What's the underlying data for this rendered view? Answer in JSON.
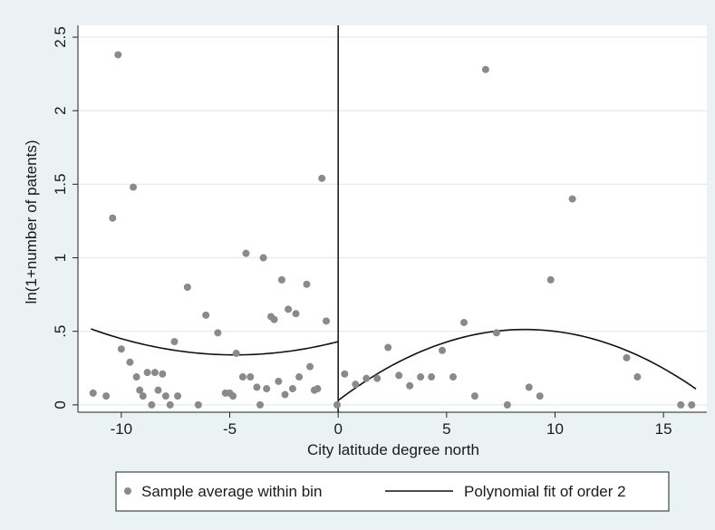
{
  "chart_data": {
    "type": "scatter",
    "title": "",
    "xlabel": "City latitude degree north",
    "ylabel": "ln(1+number of patents)",
    "xlim": [
      -12,
      17
    ],
    "ylim": [
      -0.05,
      2.58
    ],
    "x_ticks": [
      -10,
      -5,
      0,
      5,
      10,
      15
    ],
    "x_tick_labels": [
      "-10",
      "-5",
      "0",
      "5",
      "10",
      "15"
    ],
    "y_ticks": [
      0,
      0.5,
      1,
      1.5,
      2,
      2.5
    ],
    "y_tick_labels": [
      "0",
      ".5",
      "1",
      "1.5",
      "2",
      "2.5"
    ],
    "grid": "horizontal",
    "cutoff_x": 0,
    "legend_position": "bottom",
    "series": [
      {
        "name": "Sample average within bin",
        "type": "scatter",
        "color": "#8a8a8a",
        "points": [
          [
            -11.3,
            0.08
          ],
          [
            -10.7,
            0.06
          ],
          [
            -10.4,
            1.27
          ],
          [
            -10.15,
            2.38
          ],
          [
            -10.0,
            0.38
          ],
          [
            -9.6,
            0.29
          ],
          [
            -9.45,
            1.48
          ],
          [
            -9.3,
            0.19
          ],
          [
            -9.15,
            0.1
          ],
          [
            -9.0,
            0.06
          ],
          [
            -8.8,
            0.22
          ],
          [
            -8.6,
            0.0
          ],
          [
            -8.45,
            0.22
          ],
          [
            -8.3,
            0.1
          ],
          [
            -8.1,
            0.21
          ],
          [
            -7.95,
            0.06
          ],
          [
            -7.75,
            0.0
          ],
          [
            -7.55,
            0.43
          ],
          [
            -7.4,
            0.06
          ],
          [
            -6.95,
            0.8
          ],
          [
            -6.45,
            0.0
          ],
          [
            -6.1,
            0.61
          ],
          [
            -5.55,
            0.49
          ],
          [
            -5.2,
            0.08
          ],
          [
            -5.0,
            0.08
          ],
          [
            -4.85,
            0.06
          ],
          [
            -4.7,
            0.35
          ],
          [
            -4.4,
            0.19
          ],
          [
            -4.25,
            1.03
          ],
          [
            -4.05,
            0.19
          ],
          [
            -3.75,
            0.12
          ],
          [
            -3.6,
            0.0
          ],
          [
            -3.45,
            1.0
          ],
          [
            -3.3,
            0.11
          ],
          [
            -3.1,
            0.6
          ],
          [
            -2.95,
            0.58
          ],
          [
            -2.75,
            0.16
          ],
          [
            -2.6,
            0.85
          ],
          [
            -2.45,
            0.07
          ],
          [
            -2.3,
            0.65
          ],
          [
            -2.1,
            0.11
          ],
          [
            -1.95,
            0.62
          ],
          [
            -1.8,
            0.19
          ],
          [
            -1.45,
            0.82
          ],
          [
            -1.3,
            0.26
          ],
          [
            -1.1,
            0.1
          ],
          [
            -0.95,
            0.11
          ],
          [
            -0.75,
            1.54
          ],
          [
            -0.55,
            0.57
          ],
          [
            -0.05,
            0.0
          ],
          [
            0.3,
            0.21
          ],
          [
            0.8,
            0.14
          ],
          [
            1.3,
            0.18
          ],
          [
            1.8,
            0.18
          ],
          [
            2.3,
            0.39
          ],
          [
            2.8,
            0.2
          ],
          [
            3.3,
            0.13
          ],
          [
            3.8,
            0.19
          ],
          [
            4.3,
            0.19
          ],
          [
            4.8,
            0.37
          ],
          [
            5.3,
            0.19
          ],
          [
            5.8,
            0.56
          ],
          [
            6.3,
            0.06
          ],
          [
            6.8,
            2.28
          ],
          [
            7.3,
            0.49
          ],
          [
            7.8,
            0.0
          ],
          [
            8.8,
            0.12
          ],
          [
            9.3,
            0.06
          ],
          [
            9.8,
            0.85
          ],
          [
            10.8,
            1.4
          ],
          [
            13.3,
            0.32
          ],
          [
            13.8,
            0.19
          ],
          [
            15.8,
            0.0
          ],
          [
            16.3,
            0.0
          ]
        ]
      },
      {
        "name": "Polynomial fit of order 2",
        "type": "line",
        "color": "#111111",
        "segments": [
          {
            "x_range": [
              -11.4,
              0.0
            ],
            "coef": [
              0.43,
              0.038,
              0.004
            ]
          },
          {
            "x_range": [
              0.0,
              16.5
            ],
            "coef": [
              0.03,
              0.112,
              -0.0065
            ]
          }
        ]
      }
    ]
  }
}
